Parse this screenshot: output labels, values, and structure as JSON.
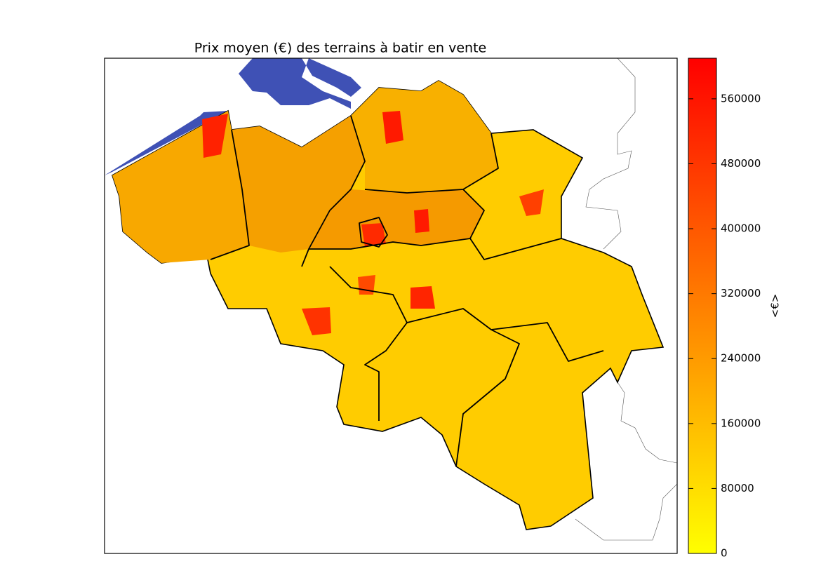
{
  "map": {
    "title": "Prix moyen (€) des terrains à batir en vente",
    "colorbar": {
      "label": "<€>",
      "lim": [
        0,
        610000
      ],
      "ticks": [
        0,
        80000,
        160000,
        240000,
        320000,
        400000,
        480000,
        560000
      ],
      "colors": [
        "#ffff00",
        "#ff0000"
      ]
    }
  }
}
